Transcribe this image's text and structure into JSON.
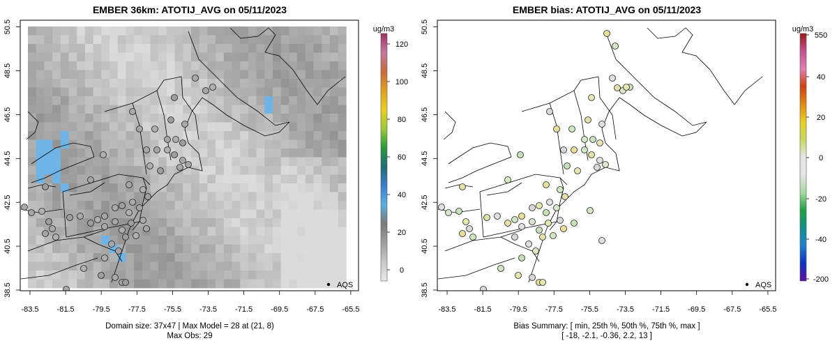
{
  "left_panel": {
    "title": "EMBER 36km: ATOTIJ_AVG on 05/11/2023",
    "legend_label": "AQS",
    "colorbar": {
      "unit": "ug/m3",
      "ticks": [
        "0",
        "20",
        "40",
        "60",
        "80",
        "100",
        "120"
      ],
      "colors": [
        "#e8e8e8",
        "#c8c8c8",
        "#9e9e9e",
        "#7a7a7a",
        "#5aaee0",
        "#3b7fd0",
        "#1f6c73",
        "#2a9a3a",
        "#9cc93a",
        "#e8d020",
        "#e0a020",
        "#c86a3a",
        "#c07aa0",
        "#a03060"
      ]
    },
    "footer_line1": "Domain size: 37x47 | Max Model = 28 at (21, 8)",
    "footer_line2": "Max Obs: 29"
  },
  "right_panel": {
    "title": "EMBER bias: ATOTIJ_AVG on 05/11/2023",
    "legend_label": "AQS",
    "colorbar": {
      "unit": "ug/m3",
      "ticks": [
        "550",
        "40",
        "20",
        "0",
        "-20",
        "-40",
        "-200"
      ],
      "colors": [
        "#9a1a1a",
        "#c45090",
        "#e080b0",
        "#d04010",
        "#e08a10",
        "#e8d020",
        "#c8d860",
        "#e6e6e6",
        "#e6e6e6",
        "#a8d8a0",
        "#20a040",
        "#10908a",
        "#2080d0",
        "#1030c0",
        "#6010a0"
      ]
    },
    "footer_line1": "Bias Summary: [ min, 25th %, 50th %, 75th %, max ]",
    "footer_line2": "[ -18,   -2.1,   -0.36,   2.2,   13 ]"
  },
  "axes": {
    "x_ticks": [
      "-83.5",
      "-81.5",
      "-79.5",
      "-77.5",
      "-75.5",
      "-73.5",
      "-71.5",
      "-69.5",
      "-67.5",
      "-65.5"
    ],
    "y_ticks": [
      "38.5",
      "40.5",
      "42.5",
      "44.5",
      "46.5",
      "48.5",
      "50.5"
    ]
  }
}
